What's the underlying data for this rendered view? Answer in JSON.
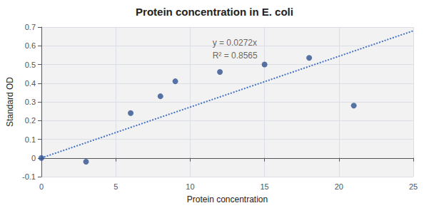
{
  "chart_data": {
    "type": "scatter",
    "title": "Protein concentration in E. coli",
    "xlabel": "Protein concentration",
    "ylabel": "Standard OD",
    "series": [
      {
        "type": "scatter",
        "color": "#2E5090",
        "marker": "circle",
        "x": [
          0,
          3,
          6,
          8,
          9,
          12,
          15,
          18,
          21
        ],
        "values": [
          0.0,
          -0.02,
          0.24,
          0.33,
          0.41,
          0.46,
          0.5,
          0.535,
          0.28
        ]
      },
      {
        "type": "line",
        "color": "#4472C4",
        "line_style": "dotted",
        "x": [
          0,
          25
        ],
        "values": [
          0,
          0.68
        ]
      }
    ],
    "annotations": [
      {
        "text": "y = 0.0272x\nR² = 0.8565",
        "x": 11.5,
        "y": 0.65
      }
    ],
    "xlim": [
      0,
      25
    ],
    "ylim": [
      -0.1,
      0.7
    ],
    "xticks": [
      0,
      5,
      10,
      15,
      20,
      25
    ],
    "yticks": [
      -0.1,
      0,
      0.1,
      0.2,
      0.3,
      0.4,
      0.5,
      0.6,
      0.7
    ],
    "grid": true
  }
}
